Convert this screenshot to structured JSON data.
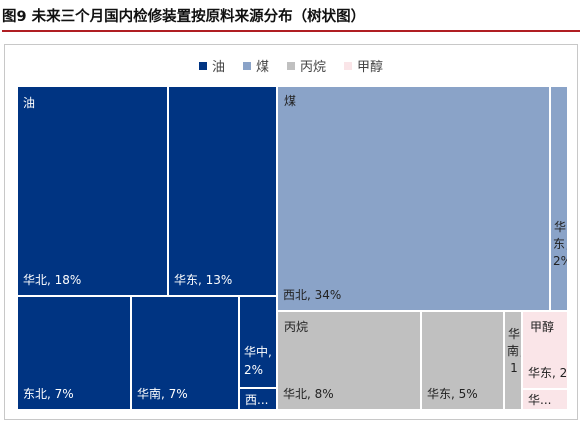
{
  "title": "图9  未来三个月国内检修装置按原料来源分布（树状图）",
  "chart_data": {
    "type": "treemap",
    "legend": [
      {
        "name": "油",
        "color": "#003482"
      },
      {
        "name": "煤",
        "color": "#8aa3c8"
      },
      {
        "name": "丙烷",
        "color": "#c0c0c0"
      },
      {
        "name": "甲醇",
        "color": "#fae5e8"
      }
    ],
    "legend_position": "top",
    "groups": [
      {
        "name": "油",
        "color": "#003482",
        "text_color": "#ffffff",
        "items": [
          {
            "region": "华北",
            "value": 18,
            "label": "华北, 18%"
          },
          {
            "region": "华东",
            "value": 13,
            "label": "华东, 13%"
          },
          {
            "region": "东北",
            "value": 7,
            "label": "东北, 7%"
          },
          {
            "region": "华南",
            "value": 7,
            "label": "华南, 7%"
          },
          {
            "region": "华中",
            "value": 2,
            "label": "华中, 2%"
          },
          {
            "region": "西北",
            "value": 1,
            "label": "西..."
          }
        ]
      },
      {
        "name": "煤",
        "color": "#8aa3c8",
        "text_color": "#222222",
        "items": [
          {
            "region": "西北",
            "value": 34,
            "label": "西北, 34%"
          },
          {
            "region": "华东",
            "value": 2,
            "label": "华东，2%"
          }
        ]
      },
      {
        "name": "丙烷",
        "color": "#c0c0c0",
        "text_color": "#222222",
        "items": [
          {
            "region": "华北",
            "value": 8,
            "label": "华北, 8%"
          },
          {
            "region": "华东",
            "value": 5,
            "label": "华东, 5%"
          },
          {
            "region": "华南",
            "value": 1,
            "label": "华南，1"
          }
        ]
      },
      {
        "name": "甲醇",
        "color": "#fae5e8",
        "text_color": "#222222",
        "items": [
          {
            "region": "华东",
            "value": 2,
            "label": "华东, 2%"
          },
          {
            "region": "华北",
            "value": 1,
            "label": "华..."
          }
        ]
      }
    ]
  }
}
